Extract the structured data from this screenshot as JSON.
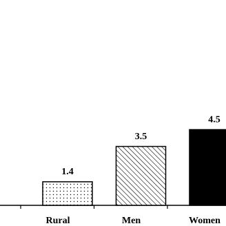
{
  "chart_data": {
    "type": "bar",
    "categories": [
      "Rural",
      "Men",
      "Women"
    ],
    "values": [
      1.4,
      3.5,
      4.5
    ],
    "fills": [
      "dots",
      "hatch",
      "solid"
    ],
    "color": "#000000",
    "ylim": [
      0,
      12
    ]
  }
}
